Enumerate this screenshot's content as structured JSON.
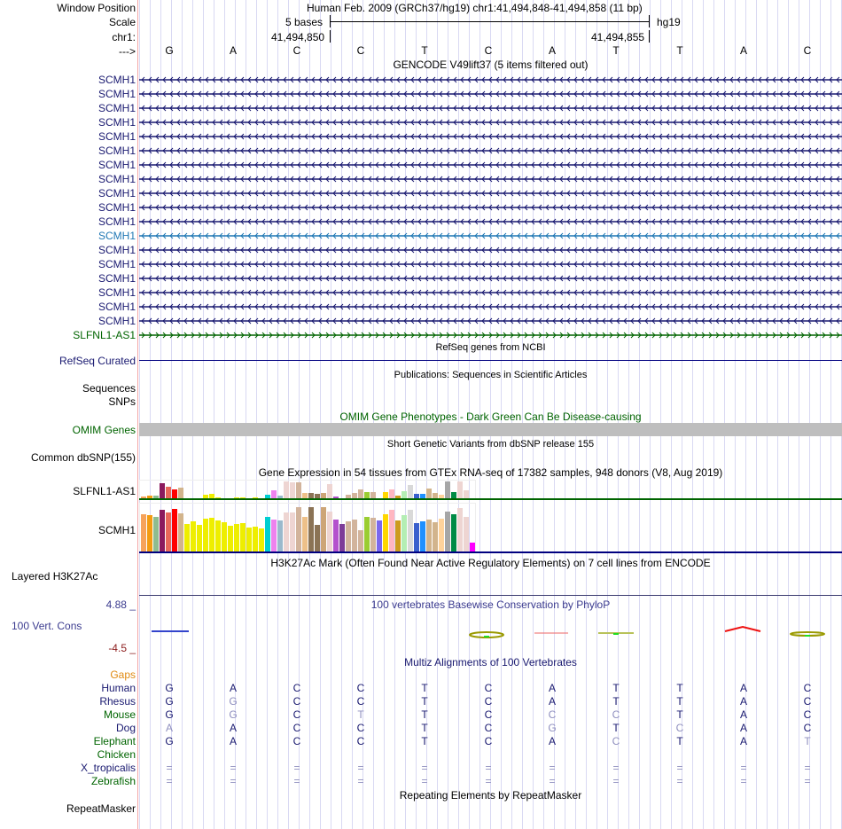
{
  "header": {
    "window_position_label": "Window Position",
    "scale_label": "Scale",
    "chrom_label": "chr1:",
    "strand_label": "--->",
    "assembly_title": "Human Feb. 2009 (GRCh37/hg19)   chr1:41,494,848-41,494,858 (11 bp)",
    "scale_text": "5 bases",
    "scale_db": "hg19",
    "pos_left": "41,494,850",
    "pos_right": "41,494,855",
    "bases": [
      "G",
      "A",
      "C",
      "C",
      "T",
      "C",
      "A",
      "T",
      "T",
      "A",
      "C"
    ]
  },
  "gencode": {
    "title": "GENCODE V49lift37 (5 items filtered out)",
    "items": [
      {
        "label": "SCMH1",
        "color": "#191970",
        "strand": "-"
      },
      {
        "label": "SCMH1",
        "color": "#191970",
        "strand": "-"
      },
      {
        "label": "SCMH1",
        "color": "#191970",
        "strand": "-"
      },
      {
        "label": "SCMH1",
        "color": "#191970",
        "strand": "-"
      },
      {
        "label": "SCMH1",
        "color": "#191970",
        "strand": "-"
      },
      {
        "label": "SCMH1",
        "color": "#191970",
        "strand": "-"
      },
      {
        "label": "SCMH1",
        "color": "#191970",
        "strand": "-"
      },
      {
        "label": "SCMH1",
        "color": "#191970",
        "strand": "-"
      },
      {
        "label": "SCMH1",
        "color": "#191970",
        "strand": "-"
      },
      {
        "label": "SCMH1",
        "color": "#191970",
        "strand": "-"
      },
      {
        "label": "SCMH1",
        "color": "#191970",
        "strand": "-"
      },
      {
        "label": "SCMH1",
        "color": "#1f77b4",
        "strand": "-"
      },
      {
        "label": "SCMH1",
        "color": "#191970",
        "strand": "-"
      },
      {
        "label": "SCMH1",
        "color": "#191970",
        "strand": "-"
      },
      {
        "label": "SCMH1",
        "color": "#191970",
        "strand": "-"
      },
      {
        "label": "SCMH1",
        "color": "#191970",
        "strand": "-"
      },
      {
        "label": "SCMH1",
        "color": "#191970",
        "strand": "-"
      },
      {
        "label": "SCMH1",
        "color": "#191970",
        "strand": "-"
      },
      {
        "label": "SLFNL1-AS1",
        "color": "#006400",
        "strand": "+"
      }
    ]
  },
  "refseq": {
    "title": "RefSeq genes from NCBI",
    "label": "RefSeq Curated"
  },
  "publications": {
    "title": "Publications: Sequences in Scientific Articles",
    "label1": "Sequences",
    "label2": "SNPs"
  },
  "omim": {
    "title": "OMIM Gene Phenotypes - Dark Green Can Be Disease-causing",
    "label": "OMIM Genes"
  },
  "dbsnp": {
    "title": "Short Genetic Variants from dbSNP release 155",
    "label": "Common dbSNP(155)"
  },
  "gtex": {
    "title": "Gene Expression in 54 tissues from GTEx RNA-seq of 17382 samples, 948 donors (V8, Aug 2019)",
    "genes": [
      {
        "label": "SLFNL1-AS1",
        "line_color": "#006400",
        "values": [
          0.15,
          0.2,
          0.2,
          0.9,
          0.7,
          0.55,
          0.65,
          0.05,
          0.05,
          0.05,
          0.25,
          0.3,
          0.1,
          0.05,
          0.05,
          0.1,
          0.1,
          0.05,
          0.1,
          0.05,
          0.25,
          0.5,
          0.2,
          1.0,
          0.95,
          0.95,
          0.35,
          0.35,
          0.3,
          0.35,
          0.85,
          0.15,
          0.05,
          0.25,
          0.35,
          0.55,
          0.4,
          0.4,
          0.05,
          0.4,
          0.55,
          0.2,
          0.45,
          0.8,
          0.3,
          0.3,
          0.6,
          0.35,
          0.25,
          1.0,
          0.4,
          1.0,
          0.5,
          0.05
        ]
      },
      {
        "label": "SCMH1",
        "line_color": "#000080",
        "values": [
          0.8,
          0.78,
          0.74,
          0.88,
          0.83,
          0.9,
          0.82,
          0.6,
          0.64,
          0.57,
          0.71,
          0.73,
          0.67,
          0.63,
          0.55,
          0.59,
          0.61,
          0.52,
          0.54,
          0.5,
          0.74,
          0.69,
          0.67,
          0.84,
          0.84,
          0.95,
          0.74,
          0.95,
          0.57,
          0.95,
          0.86,
          0.69,
          0.6,
          0.65,
          0.69,
          0.46,
          0.74,
          0.72,
          0.67,
          0.79,
          0.88,
          0.66,
          0.77,
          0.88,
          0.62,
          0.64,
          0.69,
          0.63,
          0.7,
          0.86,
          0.8,
          0.92,
          0.74,
          0.2
        ]
      }
    ],
    "colors": [
      "#f6a35b",
      "#f39c12",
      "#8fbc8f",
      "#8b1a5e",
      "#e8685a",
      "#ff0000",
      "#d2b48c",
      "#eeee00",
      "#eeee00",
      "#eeee00",
      "#eeee00",
      "#eeee00",
      "#eeee00",
      "#eeee00",
      "#eeee00",
      "#eeee00",
      "#eeee00",
      "#eeee00",
      "#eeee00",
      "#eeee00",
      "#00ced1",
      "#ee82ee",
      "#9ab9cc",
      "#eed5d2",
      "#eed5d2",
      "#d2b49c",
      "#edc089",
      "#8b7355",
      "#8b7355",
      "#cda577",
      "#eed5d2",
      "#b452cd",
      "#7d3c98",
      "#d2b49c",
      "#d2b49c",
      "#d2b49c",
      "#9acd32",
      "#d2b49c",
      "#7b68ee",
      "#ffd700",
      "#ffb6c1",
      "#cd9b1d",
      "#b4eeb4",
      "#d9d9d9",
      "#3a5fcd",
      "#1e90ff",
      "#d2b48c",
      "#d2b48c",
      "#ffd39b",
      "#a6a6a6",
      "#008b45",
      "#eed5d2",
      "#eed5d2",
      "#ff00ff"
    ]
  },
  "h3k27ac": {
    "title": "H3K27Ac Mark (Often Found Near Active Regulatory Elements) on 7 cell lines from ENCODE",
    "label": "Layered H3K27Ac"
  },
  "phylop": {
    "title": "100 vertebrates Basewise Conservation by PhyloP",
    "label": "100 Vert. Cons",
    "max": "4.88 _",
    "min": "-4.5 _"
  },
  "multiz": {
    "title": "Multiz Alignments of 100 Vertebrates",
    "gaps_label": "Gaps",
    "species": [
      {
        "name": "Human",
        "color": "#191970",
        "bases": [
          "G",
          "A",
          "C",
          "C",
          "T",
          "C",
          "A",
          "T",
          "T",
          "A",
          "C"
        ],
        "dim": [
          0,
          0,
          0,
          0,
          0,
          0,
          0,
          0,
          0,
          0,
          0
        ]
      },
      {
        "name": "Rhesus",
        "color": "#191970",
        "bases": [
          "G",
          "G",
          "C",
          "C",
          "T",
          "C",
          "A",
          "T",
          "T",
          "A",
          "C"
        ],
        "dim": [
          0,
          1,
          0,
          0,
          0,
          0,
          0,
          0,
          0,
          0,
          0
        ]
      },
      {
        "name": "Mouse",
        "color": "#006400",
        "bases": [
          "G",
          "G",
          "C",
          "T",
          "T",
          "C",
          "C",
          "C",
          "T",
          "A",
          "C"
        ],
        "dim": [
          0,
          1,
          0,
          1,
          0,
          0,
          1,
          1,
          0,
          0,
          0
        ]
      },
      {
        "name": "Dog",
        "color": "#191970",
        "bases": [
          "A",
          "A",
          "C",
          "C",
          "T",
          "C",
          "G",
          "T",
          "C",
          "A",
          "C"
        ],
        "dim": [
          1,
          0,
          0,
          0,
          0,
          0,
          1,
          0,
          1,
          0,
          0
        ]
      },
      {
        "name": "Elephant",
        "color": "#006400",
        "bases": [
          "G",
          "A",
          "C",
          "C",
          "T",
          "C",
          "A",
          "C",
          "T",
          "A",
          "T"
        ],
        "dim": [
          0,
          0,
          0,
          0,
          0,
          0,
          0,
          1,
          0,
          0,
          1
        ]
      },
      {
        "name": "Chicken",
        "color": "#006400",
        "bases": [
          "",
          "",
          "",
          "",
          "",
          "",
          "",
          "",
          "",
          "",
          ""
        ],
        "dim": [
          0,
          0,
          0,
          0,
          0,
          0,
          0,
          0,
          0,
          0,
          0
        ]
      },
      {
        "name": "X_tropicalis",
        "color": "#191970",
        "bases": [
          "=",
          "=",
          "=",
          "=",
          "=",
          "=",
          "=",
          "=",
          "=",
          "=",
          "="
        ],
        "dim": [
          1,
          1,
          1,
          1,
          1,
          1,
          1,
          1,
          1,
          1,
          1
        ]
      },
      {
        "name": "Zebrafish",
        "color": "#006400",
        "bases": [
          "=",
          "=",
          "=",
          "=",
          "=",
          "=",
          "=",
          "=",
          "=",
          "=",
          "="
        ],
        "dim": [
          1,
          1,
          1,
          1,
          1,
          1,
          1,
          1,
          1,
          1,
          1
        ]
      }
    ]
  },
  "repeatmasker": {
    "title": "Repeating Elements by RepeatMasker",
    "label": "RepeatMasker"
  }
}
